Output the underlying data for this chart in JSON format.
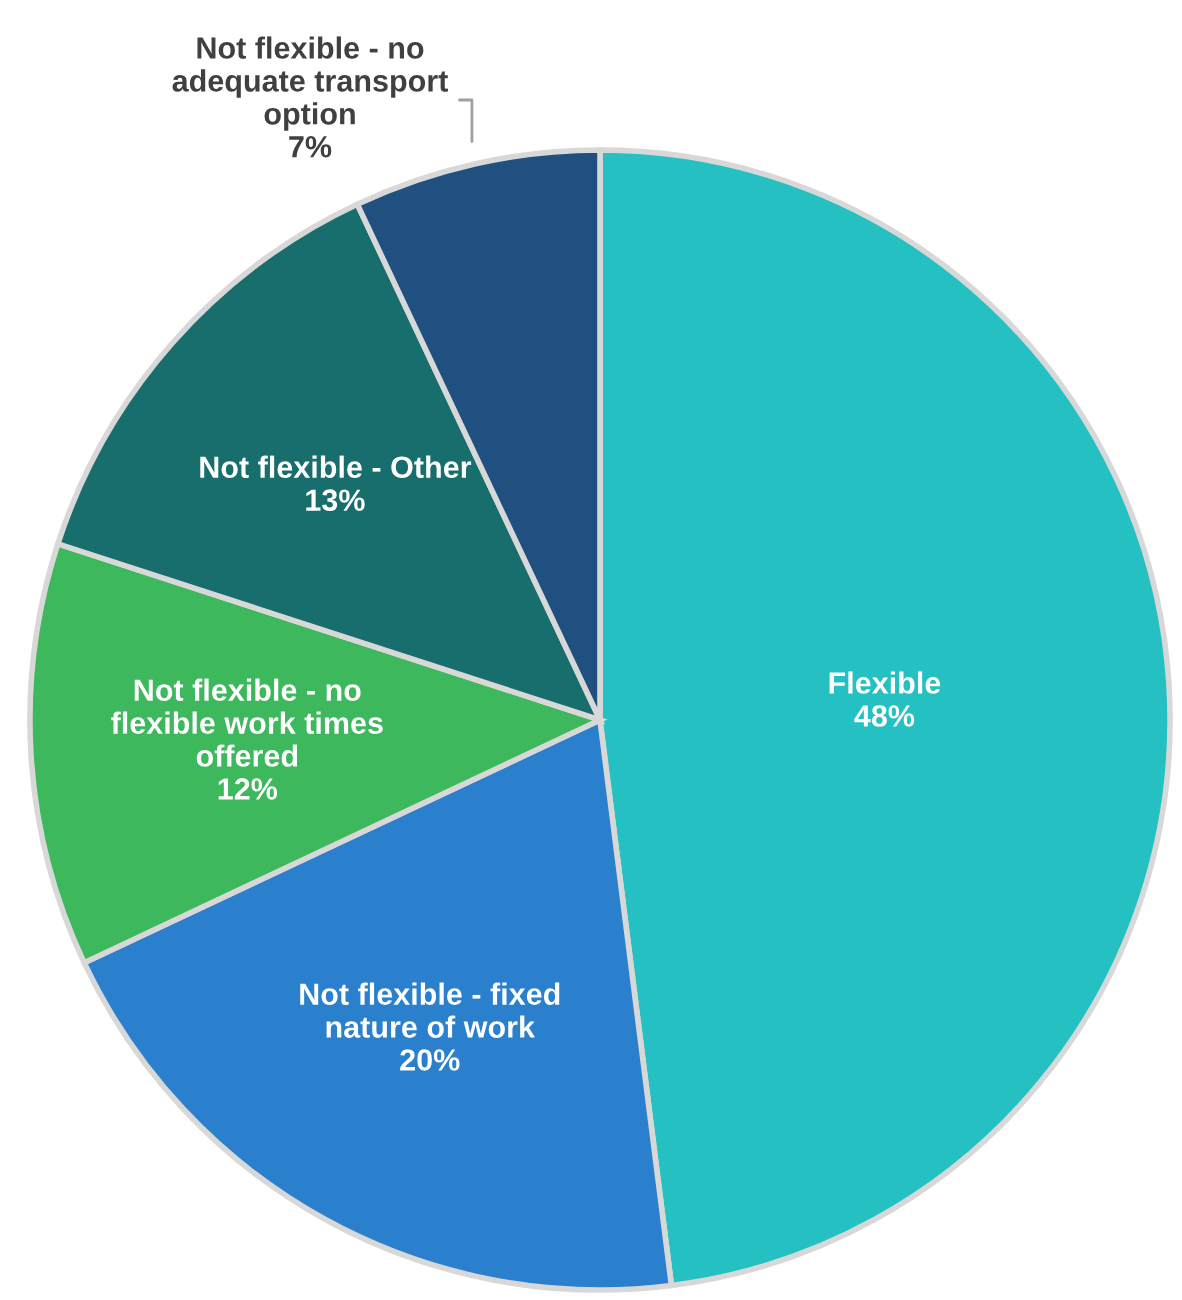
{
  "chart_data": {
    "type": "pie",
    "categories": [
      "Flexible",
      "Not flexible - fixed\nnature of work",
      "Not flexible - no\nflexible work times\noffered",
      "Not flexible - Other",
      "Not flexible - no\nadequate transport\noption"
    ],
    "values": [
      48,
      20,
      12,
      13,
      7
    ],
    "value_labels": [
      "48%",
      "20%",
      "12%",
      "13%",
      "7%"
    ],
    "colors": [
      "#25c0c2",
      "#2a80cc",
      "#3db85c",
      "#186e6c",
      "#1f5080"
    ],
    "legend": false
  }
}
